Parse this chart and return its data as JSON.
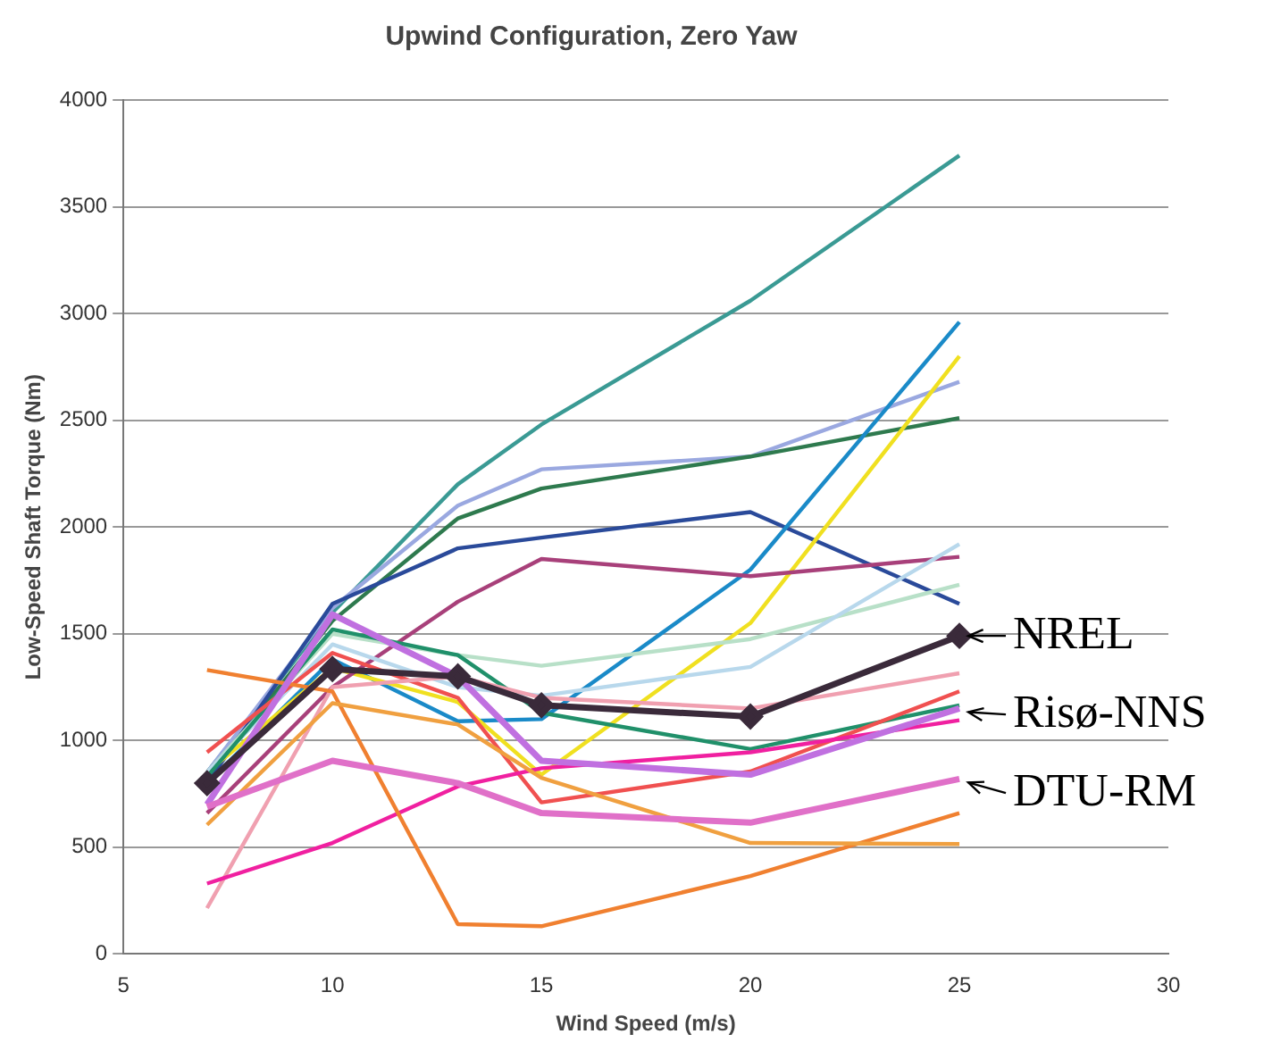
{
  "chart_data": {
    "type": "line",
    "title": "Upwind Configuration, Zero Yaw",
    "xlabel": "Wind Speed (m/s)",
    "ylabel": "Low-Speed Shaft Torque (Nm)",
    "x": [
      7,
      10,
      13,
      15,
      20,
      25
    ],
    "xlim": [
      5,
      30
    ],
    "xticks": [
      5,
      10,
      15,
      20,
      25,
      30
    ],
    "ylim": [
      0,
      4000
    ],
    "yticks": [
      0,
      500,
      1000,
      1500,
      2000,
      2500,
      3000,
      3500,
      4000
    ],
    "grid": "y",
    "legend": false,
    "marker": "none",
    "line_style": "solid",
    "series": [
      {
        "color": "#3a9a94",
        "values": [
          850,
          1600,
          2200,
          2480,
          3060,
          3740
        ]
      },
      {
        "color": "#9aa8e0",
        "values": [
          850,
          1620,
          2100,
          2270,
          2330,
          2680
        ]
      },
      {
        "color": "#2e7a4e",
        "values": [
          830,
          1560,
          2040,
          2180,
          2330,
          2510
        ]
      },
      {
        "color": "#2a4a9a",
        "values": [
          800,
          1640,
          1900,
          1950,
          2070,
          1640
        ]
      },
      {
        "color": "#1a8ac8",
        "values": [
          800,
          1380,
          1090,
          1100,
          1800,
          2960
        ]
      },
      {
        "color": "#f0e020",
        "values": [
          850,
          1340,
          1180,
          840,
          1550,
          2800
        ]
      },
      {
        "color": "#a8407a",
        "values": [
          660,
          1250,
          1650,
          1850,
          1770,
          1860
        ]
      },
      {
        "color": "#b8e0c8",
        "values": [
          850,
          1500,
          1400,
          1350,
          1475,
          1730
        ]
      },
      {
        "color": "#b8d8ec",
        "values": [
          850,
          1450,
          1250,
          1210,
          1345,
          1920
        ]
      },
      {
        "color": "#20906a",
        "values": [
          830,
          1520,
          1400,
          1130,
          960,
          1165
        ]
      },
      {
        "color": "#f05050",
        "values": [
          945,
          1410,
          1200,
          710,
          855,
          1230
        ]
      },
      {
        "color": "#f0a0b0",
        "values": [
          215,
          1250,
          1300,
          1200,
          1150,
          1315
        ]
      },
      {
        "color": "#f020a0",
        "values": [
          330,
          520,
          785,
          870,
          945,
          1095
        ]
      },
      {
        "color": "#f08030",
        "values": [
          1330,
          1230,
          140,
          130,
          365,
          660
        ]
      },
      {
        "color": "#f0a040",
        "values": [
          605,
          1175,
          1075,
          825,
          520,
          515
        ]
      },
      {
        "name": "Risø-NNS",
        "color": "#c070e0",
        "values": [
          700,
          1590,
          1300,
          905,
          840,
          1150
        ]
      },
      {
        "name": "DTU-RM",
        "color": "#e070c8",
        "values": [
          690,
          905,
          800,
          660,
          615,
          820
        ]
      },
      {
        "name": "NREL",
        "color": "#3a2a3a",
        "marker": "diamond",
        "values": [
          800,
          1335,
          1300,
          1165,
          1112,
          1490
        ]
      }
    ]
  }
}
